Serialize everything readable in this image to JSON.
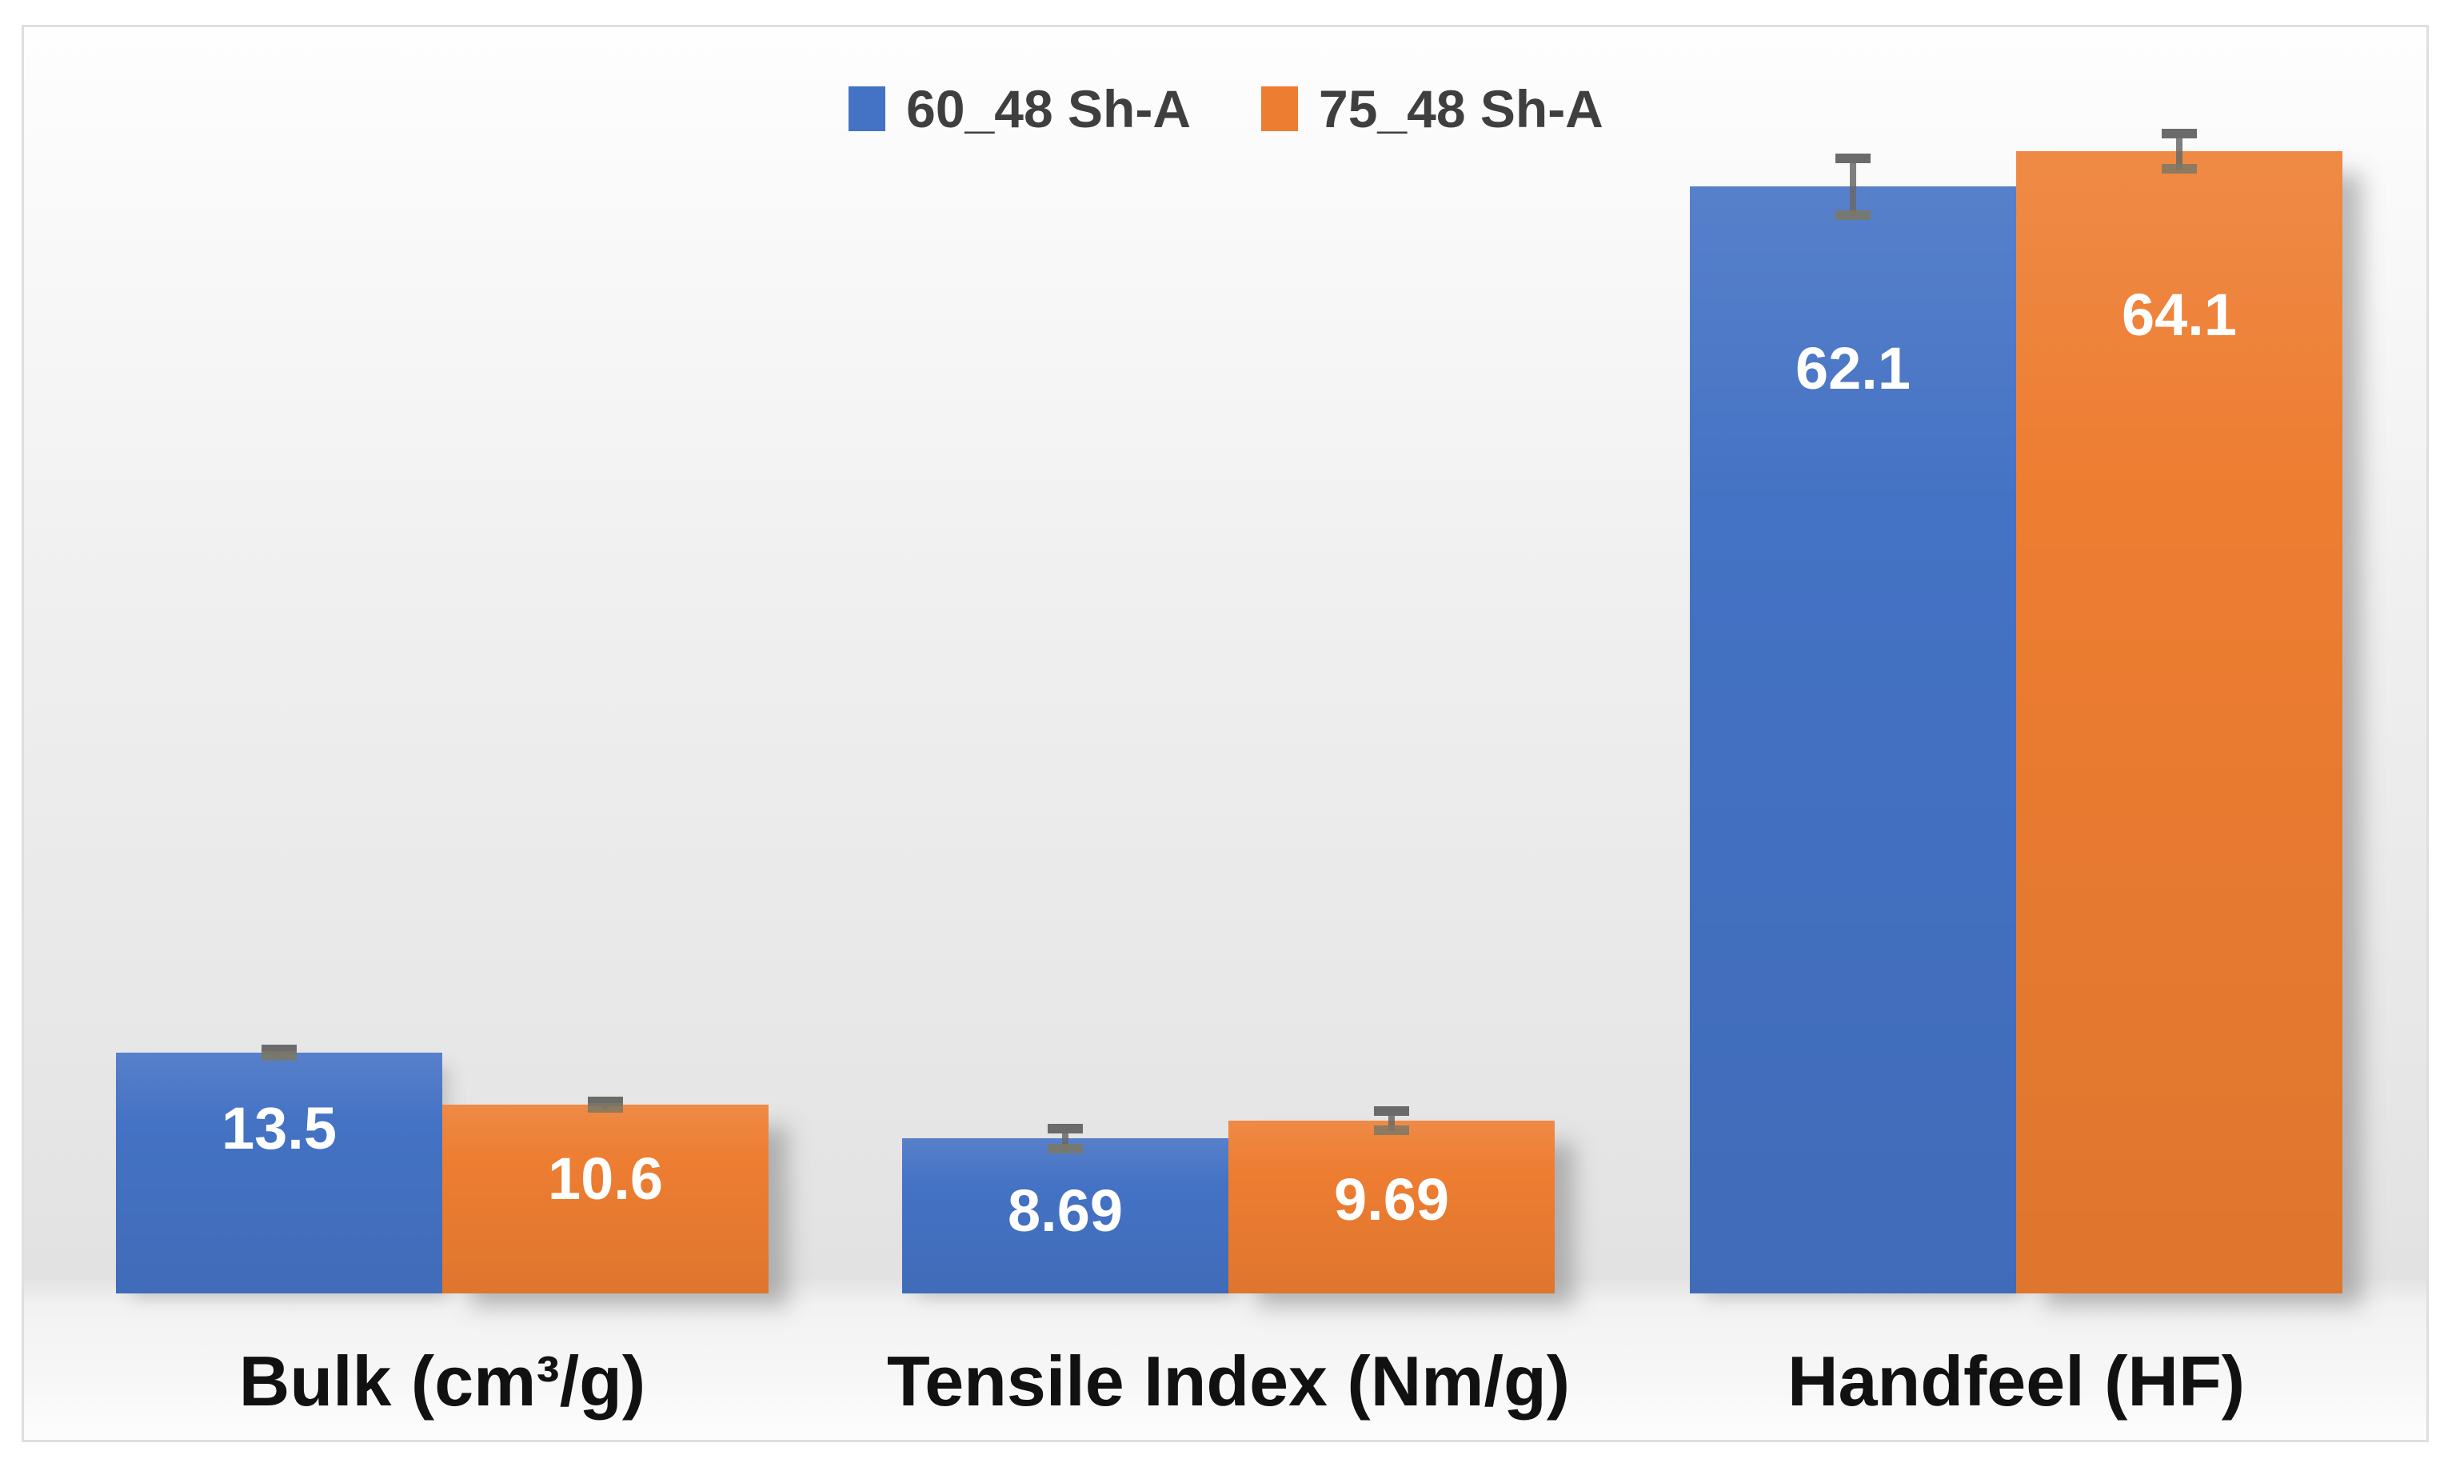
{
  "chart_data": {
    "type": "bar",
    "title": "",
    "categories": [
      "Bulk (cm³/g)",
      "Tensile Index (Nm/g)",
      "Handfeel (HF)"
    ],
    "series": [
      {
        "name": "60_48 Sh-A",
        "color": "#4472c4",
        "values": [
          13.5,
          8.69,
          62.1
        ],
        "value_labels": [
          "13.5",
          "8.69",
          "62.1"
        ],
        "error_bars": [
          0.18,
          0.55,
          1.6
        ]
      },
      {
        "name": "75_48 Sh-A",
        "color": "#ed7d31",
        "values": [
          10.6,
          9.69,
          64.1
        ],
        "value_labels": [
          "10.6",
          "9.69",
          "64.1"
        ],
        "error_bars": [
          0.18,
          0.55,
          1.0
        ]
      }
    ],
    "xlabel": "",
    "ylabel": "",
    "ylim": [
      0,
      69
    ],
    "grid": false,
    "y_axis_visible": false,
    "legend_position": "top-center",
    "value_label_style": "inside-end-white-bold",
    "error_bar_color": "#6b6b6b",
    "frame_border_color": "#dfdfdf",
    "legend_text_color": "#3f3f3f",
    "category_text_color": "#111111"
  }
}
